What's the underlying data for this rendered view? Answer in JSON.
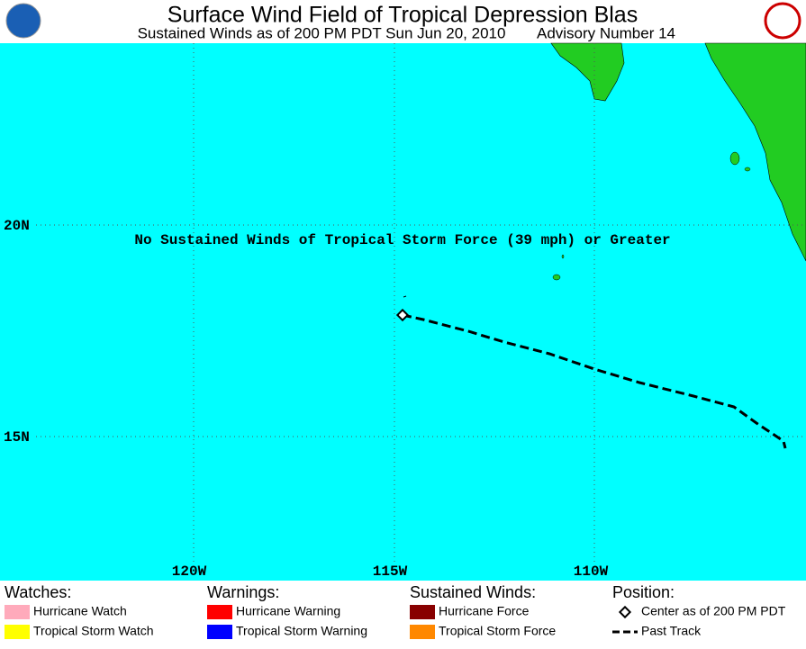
{
  "header": {
    "title": "Surface Wind Field of Tropical Depression Blas",
    "subtitle": "Sustained Winds as of 200 PM PDT Sun Jun 20, 2010",
    "advisory": "Advisory Number 14"
  },
  "map": {
    "latitude_labels": [
      "20N",
      "15N"
    ],
    "longitude_labels": [
      "120W",
      "115W",
      "110W"
    ],
    "message": "No Sustained Winds of Tropical Storm Force (39 mph) or Greater"
  },
  "legend": [
    {
      "heading": "Watches:",
      "items": [
        {
          "label": "Hurricane Watch",
          "color": "#ffaabb"
        },
        {
          "label": "Tropical Storm Watch",
          "color": "#ffff00"
        }
      ]
    },
    {
      "heading": "Warnings:",
      "items": [
        {
          "label": "Hurricane Warning",
          "color": "#ff0000"
        },
        {
          "label": "Tropical Storm Warning",
          "color": "#0000ff"
        }
      ]
    },
    {
      "heading": "Sustained Winds:",
      "items": [
        {
          "label": "Hurricane Force",
          "color": "#880000"
        },
        {
          "label": "Tropical Storm Force",
          "color": "#ff8800"
        }
      ]
    },
    {
      "heading": "Position:",
      "items": [
        {
          "label": "Center as of 200 PM PDT"
        },
        {
          "label": "Past Track"
        }
      ]
    }
  ]
}
